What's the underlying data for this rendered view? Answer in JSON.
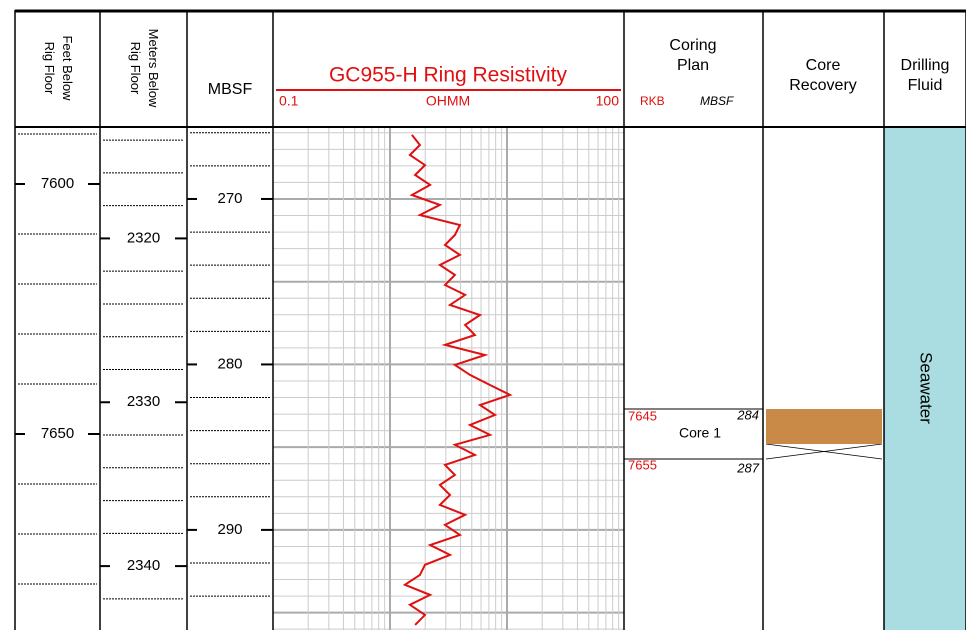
{
  "depth_tracks": [
    {
      "title_lines": [
        "Feet Below",
        "Rig Floor"
      ],
      "ylim": [
        7588.6,
        7689.2
      ],
      "ticks": [
        7600,
        7650
      ],
      "minor_ticks": [
        7590,
        7610,
        7620,
        7630,
        7640,
        7660,
        7670,
        7680
      ]
    },
    {
      "title_lines": [
        "Meters Below",
        "Rig Floor"
      ],
      "ylim": [
        2313.2,
        2343.9
      ],
      "ticks": [
        2320,
        2330,
        2340
      ],
      "minor_ticks": [
        2314,
        2316,
        2318,
        2322,
        2324,
        2326,
        2328,
        2332,
        2334,
        2336,
        2338,
        2342
      ]
    },
    {
      "title_lines": [
        "MBSF"
      ],
      "ylim": [
        265.65,
        296.05
      ],
      "ticks": [
        270,
        280,
        290
      ],
      "minor_ticks": [
        266,
        268,
        272,
        274,
        276,
        278,
        282,
        284,
        286,
        288,
        292,
        294
      ]
    }
  ],
  "chart_data": {
    "type": "line",
    "title": "GC955-H Ring Resistivity",
    "x_label": "OHMM",
    "log_scale": true,
    "xlim": [
      0.1,
      100
    ],
    "xticks": [
      0.1,
      100
    ],
    "color": "#e01010",
    "grid": true,
    "xgrid": [
      0.2,
      0.3,
      0.4,
      0.5,
      0.6,
      0.7,
      0.8,
      0.9,
      1,
      2,
      3,
      4,
      5,
      6,
      7,
      8,
      9,
      10,
      20,
      30,
      40,
      50,
      60,
      70,
      80,
      90
    ],
    "ylim": [
      265.65,
      296.05
    ],
    "ygrid": [
      266,
      267,
      268,
      269,
      270,
      271,
      272,
      273,
      274,
      275,
      276,
      277,
      278,
      279,
      280,
      281,
      282,
      283,
      284,
      285,
      286,
      287,
      288,
      289,
      290,
      291,
      292,
      293,
      294,
      295,
      296
    ],
    "x": [
      266.13,
      266.74,
      267.34,
      267.95,
      268.55,
      269.15,
      269.76,
      270.36,
      270.97,
      271.57,
      272.18,
      272.78,
      273.38,
      273.99,
      274.59,
      275.2,
      275.8,
      276.4,
      277.01,
      277.61,
      278.22,
      278.82,
      279.43,
      280.03,
      280.63,
      281.24,
      281.84,
      282.45,
      283.05,
      283.66,
      284.26,
      284.86,
      285.47,
      286.07,
      286.68,
      287.28,
      287.89,
      288.49,
      289.09,
      289.7,
      290.3,
      290.91,
      291.51,
      292.11,
      292.72,
      293.32,
      293.93,
      294.53,
      295.14,
      295.74
    ],
    "values": [
      1.54,
      1.8,
      1.48,
      1.99,
      1.64,
      2.2,
      1.54,
      2.67,
      1.8,
      3.96,
      3.59,
      2.95,
      3.96,
      2.67,
      3.59,
      2.95,
      4.38,
      3.26,
      5.88,
      4.38,
      5.32,
      2.95,
      6.49,
      3.59,
      4.83,
      7.16,
      10.6,
      5.88,
      7.89,
      4.83,
      7.16,
      3.59,
      5.32,
      2.95,
      3.59,
      2.67,
      3.26,
      2.67,
      4.38,
      2.95,
      3.96,
      2.2,
      3.26,
      1.99,
      1.8,
      1.34,
      2.2,
      1.48,
      1.99,
      1.64
    ]
  },
  "coring_plan": {
    "title_lines": [
      "Coring",
      "Plan"
    ],
    "rkb_label": "RKB",
    "mbsf_label": "MBSF",
    "cores": [
      {
        "name": "Core 1",
        "top_rkb": 7645,
        "top_mbsf": 284,
        "bottom_rkb": 7655,
        "bottom_mbsf": 287
      }
    ]
  },
  "core_recovery": {
    "title_lines": [
      "Core",
      "Recovery"
    ],
    "recovered": [
      7645,
      7652
    ],
    "color": "#c98a47"
  },
  "drilling_fluid": {
    "title_lines": [
      "Drilling",
      "Fluid"
    ],
    "fluid": "Seawater",
    "color": "#a9dde2"
  }
}
